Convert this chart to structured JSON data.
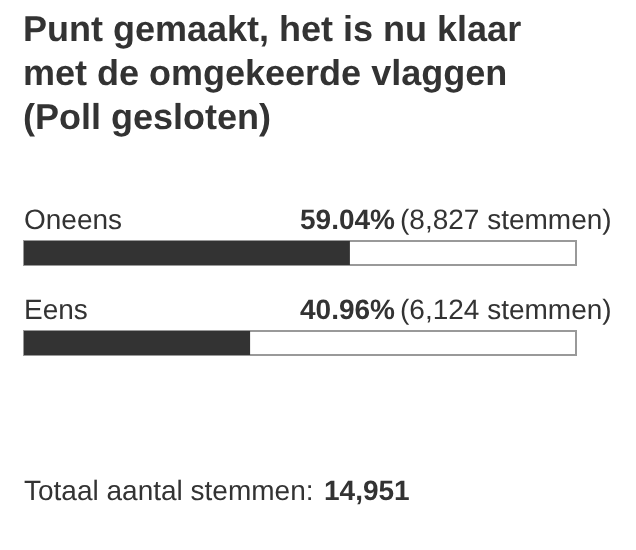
{
  "chart_data": {
    "type": "bar",
    "orientation": "horizontal",
    "title": "Punt gemaakt, het is nu klaar met de omgekeerde vlaggen (Poll gesloten)",
    "categories": [
      "Oneens",
      "Eens"
    ],
    "values": [
      59.04,
      40.96
    ],
    "value_labels": [
      "59.04%",
      "40.96%"
    ],
    "color": "#333333",
    "xlim": [
      0,
      100
    ],
    "annotations": [
      "(8,827 stemmen)",
      "(6,124 stemmen)",
      "Totaal aantal stemmen: 14,951"
    ]
  }
}
